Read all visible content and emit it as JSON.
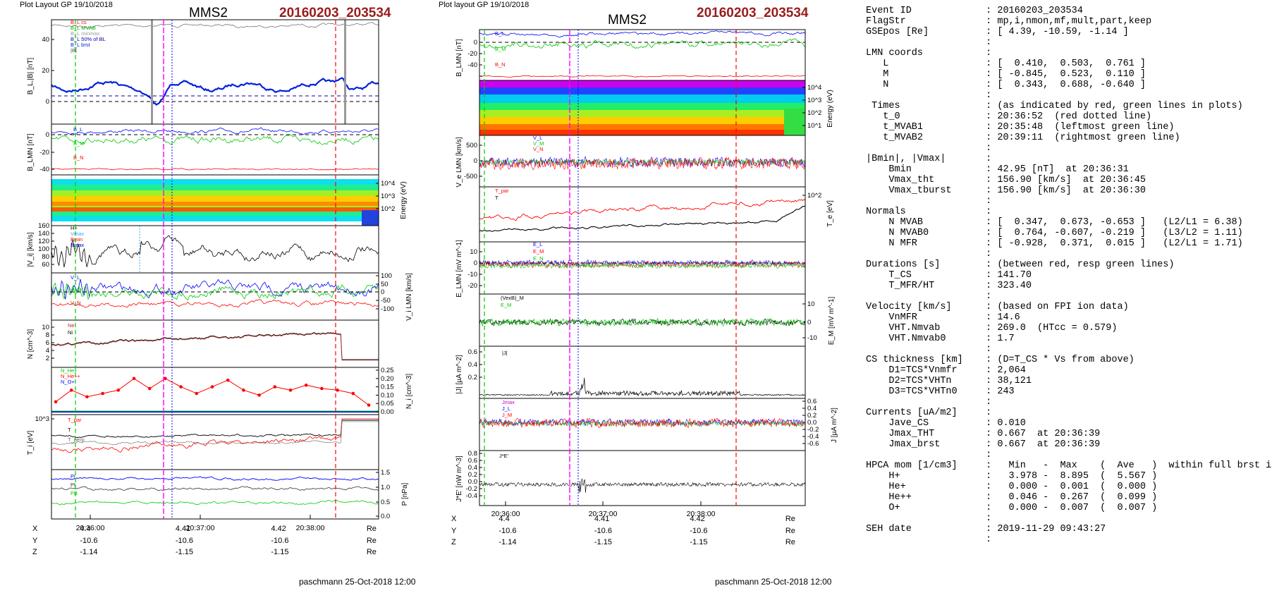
{
  "left": {
    "plot_label": "Plot Layout GP 19/10/2018",
    "spacecraft": "MMS2",
    "event": "20160203_203534",
    "footer": "paschmann 25-Oct-2018 12:00",
    "time_ticks": [
      "20:36:00",
      "20:37:00",
      "20:38:00"
    ],
    "pos_rows": [
      {
        "axis": "X",
        "vals": [
          "4.4",
          "4.41",
          "4.42"
        ],
        "unit": "Re"
      },
      {
        "axis": "Y",
        "vals": [
          "-10.6",
          "-10.6",
          "-10.6"
        ],
        "unit": "Re"
      },
      {
        "axis": "Z",
        "vals": [
          "-1.14",
          "-1.15",
          "-1.15"
        ],
        "unit": "Re"
      }
    ]
  },
  "middle": {
    "plot_label": "Plot layout GP 19/10/2018",
    "spacecraft": "MMS2",
    "event": "20160203_203534",
    "footer": "paschmann 25-Oct-2018 12:00",
    "time_ticks": [
      "20:36:00",
      "20:37:00",
      "20:38:00"
    ],
    "pos_rows": [
      {
        "axis": "X",
        "vals": [
          "4.4",
          "4.41",
          "4.42"
        ],
        "unit": "Re"
      },
      {
        "axis": "Y",
        "vals": [
          "-10.6",
          "-10.6",
          "-10.6"
        ],
        "unit": "Re"
      },
      {
        "axis": "Z",
        "vals": [
          "-1.14",
          "-1.15",
          "-1.15"
        ],
        "unit": "Re"
      }
    ]
  },
  "chart_data": [
    {
      "type": "line",
      "panel": "B_L,|B|",
      "ylabel": "B_L,|B| [nT]",
      "ylim": [
        -10,
        55
      ],
      "ticks": [
        "40",
        "20",
        "0"
      ],
      "legend": [
        "B_L cs",
        "B_L MVAB",
        "B_L minmax",
        "B_L 50% of BL",
        "B_L brst",
        "|B|"
      ]
    },
    {
      "type": "line",
      "panel": "B_LMN",
      "ylabel": "B_LMN [nT]",
      "ylim": [
        -50,
        15
      ],
      "ticks": [
        "0",
        "-20",
        "-40"
      ],
      "legend": [
        "B_L",
        "B_M",
        "B_N"
      ]
    },
    {
      "type": "heatmap",
      "panel": "ion energy spectrogram",
      "ylabel": "Energy (eV)",
      "ticks": [
        "10^4",
        "10^3",
        "10^2"
      ]
    },
    {
      "type": "line",
      "panel": "|V_i|",
      "ylabel": "|V_i| [km/s]",
      "ylim": [
        55,
        160
      ],
      "ticks": [
        "160",
        "140",
        "120",
        "100",
        "80",
        "60"
      ],
      "legend": [
        "H+",
        "Vmax",
        "Bmin",
        "Bmax"
      ]
    },
    {
      "type": "line",
      "panel": "V_i LMN",
      "ylabel": "V_i LMN [km/s]",
      "ylim": [
        -120,
        110
      ],
      "ticks": [
        "100",
        "50",
        "0",
        "-50",
        "-100"
      ],
      "legend": [
        "V_L",
        "V_M",
        "V_N"
      ]
    },
    {
      "type": "line",
      "panel": "N",
      "ylabel": "N [cm^-3]",
      "ylim": [
        1,
        11
      ],
      "ticks": [
        "10",
        "8",
        "6",
        "4",
        "2"
      ],
      "legend": [
        "Ne",
        "Ni"
      ]
    },
    {
      "type": "line",
      "panel": "N_i minor",
      "ylabel": "N_i [cm^-3]",
      "ylim": [
        0,
        0.25
      ],
      "ticks": [
        "0.25",
        "0.20",
        "0.15",
        "0.10",
        "0.05",
        "0.00"
      ],
      "legend": [
        "N_He+",
        "N_He++",
        "N_O+"
      ],
      "series": [
        {
          "name": "N_He++",
          "values": [
            0.06,
            0.13,
            0.09,
            0.11,
            0.13,
            0.2,
            0.14,
            0.2,
            0.15,
            0.11,
            0.15,
            0.19,
            0.13,
            0.1,
            0.15,
            0.13,
            0.16,
            0.14,
            0.13,
            0.11,
            0.04
          ]
        }
      ]
    },
    {
      "type": "line",
      "panel": "T_i",
      "ylabel": "T_i [eV]",
      "ticks": [
        "10^3"
      ],
      "legend": [
        "T_par",
        "T",
        "T_perp"
      ]
    },
    {
      "type": "line",
      "panel": "P",
      "ylabel": "P [nPa]",
      "ylim": [
        0,
        1.5
      ],
      "ticks": [
        "1.5",
        "1.0",
        "0.5",
        "0.0"
      ],
      "legend": [
        "Pi",
        "Pt",
        "PB"
      ]
    },
    {
      "type": "line",
      "panel": "B_LMN (middle)",
      "ylabel": "B_LMN [nT]",
      "ylim": [
        -50,
        15
      ],
      "ticks": [
        "0",
        "-20",
        "-40"
      ],
      "legend": [
        "B_L",
        "B_M",
        "B_N"
      ]
    },
    {
      "type": "heatmap",
      "panel": "electron energy spectrogram",
      "ylabel": "Energy (eV)",
      "ticks": [
        "10^4",
        "10^3",
        "10^2",
        "10^1"
      ]
    },
    {
      "type": "line",
      "panel": "V_e LMN",
      "ylabel": "V_e LMN [km/s]",
      "ylim": [
        -600,
        900
      ],
      "ticks": [
        "500",
        "0",
        "-500"
      ],
      "legend": [
        "V_L",
        "V_M",
        "V_N"
      ]
    },
    {
      "type": "line",
      "panel": "T_e",
      "ylabel": "T_e [eV]",
      "ticks": [
        "10^2"
      ],
      "legend": [
        "T_par",
        "T"
      ]
    },
    {
      "type": "line",
      "panel": "E_LMN",
      "ylabel": "E_LMN [mV m^-1]",
      "ylim": [
        -25,
        15
      ],
      "ticks": [
        "10",
        "0",
        "-10",
        "-20"
      ],
      "legend": [
        "E_L",
        "E_M",
        "E_N"
      ]
    },
    {
      "type": "line",
      "panel": "E_M",
      "ylabel": "E_M [mV m^-1]",
      "ylim": [
        -15,
        15
      ],
      "ticks": [
        "10",
        "0",
        "-10"
      ],
      "legend": [
        "(VexB)_M",
        "E_M"
      ]
    },
    {
      "type": "line",
      "panel": "|J|",
      "ylabel": "|J| [µA m^-2]",
      "ylim": [
        0,
        0.65
      ],
      "ticks": [
        "0.6",
        "0.4",
        "0.2"
      ],
      "legend": [
        "|J|"
      ]
    },
    {
      "type": "line",
      "panel": "J",
      "ylabel": "J [µA m^-2]",
      "ylim": [
        -0.7,
        0.7
      ],
      "ticks": [
        "0.6",
        "0.4",
        "0.2",
        "0.0",
        "-0.2",
        "-0.4",
        "-0.6"
      ],
      "legend": [
        "Jmax",
        "J_L",
        "J_M"
      ]
    },
    {
      "type": "line",
      "panel": "J*E'",
      "ylabel": "J*E' [nW m^-3]",
      "ylim": [
        -0.5,
        0.85
      ],
      "ticks": [
        "0.8",
        "0.6",
        "0.4",
        "0.2",
        "0.0",
        "-0.2",
        "-0.4"
      ],
      "legend": [
        "J*E'"
      ]
    }
  ],
  "info": [
    [
      "Event ID",
      "20160203_203534"
    ],
    [
      "FlagStr",
      "mp,i,nmon,mf,mult,part,keep"
    ],
    [
      "GSEpos [Re]",
      "[ 4.39, -10.59, -1.14 ]"
    ],
    [
      "",
      ""
    ],
    [
      "LMN coords",
      ""
    ],
    [
      "   L",
      "[  0.410,  0.503,  0.761 ]"
    ],
    [
      "   M",
      "[ -0.845,  0.523,  0.110 ]"
    ],
    [
      "   N",
      "[  0.343,  0.688, -0.640 ]"
    ],
    [
      "",
      ""
    ],
    [
      " Times",
      "(as indicated by red, green lines in plots)"
    ],
    [
      "   t_0",
      "20:36:52  (red dotted line)"
    ],
    [
      "   t_MVAB1",
      "20:35:48  (leftmost green line)"
    ],
    [
      "   t_MVAB2",
      "20:39:11  (rightmost green line)"
    ],
    [
      "",
      ""
    ],
    [
      "|Bmin|, |Vmax|",
      ""
    ],
    [
      "    Bmin",
      "42.95 [nT]  at 20:36:31"
    ],
    [
      "    Vmax_tht",
      "156.90 [km/s]  at 20:36:45"
    ],
    [
      "    Vmax_tburst",
      "156.90 [km/s]  at 20:36:30"
    ],
    [
      "",
      ""
    ],
    [
      "Normals",
      ""
    ],
    [
      "    N MVAB",
      "[  0.347,  0.673, -0.653 ]   (L2/L1 = 6.38)"
    ],
    [
      "    N MVAB0",
      "[  0.764, -0.607, -0.219 ]   (L3/L2 = 1.11)"
    ],
    [
      "    N MFR",
      "[ -0.928,  0.371,  0.015 ]   (L2/L1 = 1.71)"
    ],
    [
      "",
      ""
    ],
    [
      "Durations [s]",
      "(between red, resp green lines)"
    ],
    [
      "    T_CS",
      "141.70"
    ],
    [
      "    T_MFR/HT",
      "323.40"
    ],
    [
      "",
      ""
    ],
    [
      "Velocity [km/s]",
      "(based on FPI ion data)"
    ],
    [
      "    VnMFR",
      "14.6"
    ],
    [
      "    VHT.Nmvab",
      "269.0  (HTcc = 0.579)"
    ],
    [
      "    VHT.Nmvab0",
      "1.7"
    ],
    [
      "",
      ""
    ],
    [
      "CS thickness [km]",
      "(D=T_CS * Vs from above)"
    ],
    [
      "    D1=TCS*Vnmfr",
      "2,064"
    ],
    [
      "    D2=TCS*VHTn",
      "38,121"
    ],
    [
      "    D3=TCS*VHTn0",
      "243"
    ],
    [
      "",
      ""
    ],
    [
      "Currents [uA/m2]",
      ""
    ],
    [
      "    Jave_CS",
      "0.010"
    ],
    [
      "    Jmax_THT",
      "0.667  at 20:36:39"
    ],
    [
      "    Jmax_brst",
      "0.667  at 20:36:39"
    ],
    [
      "",
      ""
    ],
    [
      "HPCA mom [1/cm3]",
      "  Min   -  Max    (  Ave   )  within full brst int"
    ],
    [
      "    H+",
      "  3.978 -  8.895  (  5.567 )"
    ],
    [
      "    He+",
      "  0.000 -  0.001  (  0.000 )"
    ],
    [
      "    He++",
      "  0.046 -  0.267  (  0.099 )"
    ],
    [
      "    O+",
      "  0.000 -  0.007  (  0.007 )"
    ],
    [
      "",
      ""
    ],
    [
      "SEH date",
      "2019-11-29 09:43:27"
    ],
    [
      "",
      ""
    ]
  ],
  "colors": {
    "event": "#9b1c1c",
    "red": "#ff0000",
    "green": "#00cc00",
    "blue": "#0000ff",
    "magenta": "#ff00ff"
  }
}
